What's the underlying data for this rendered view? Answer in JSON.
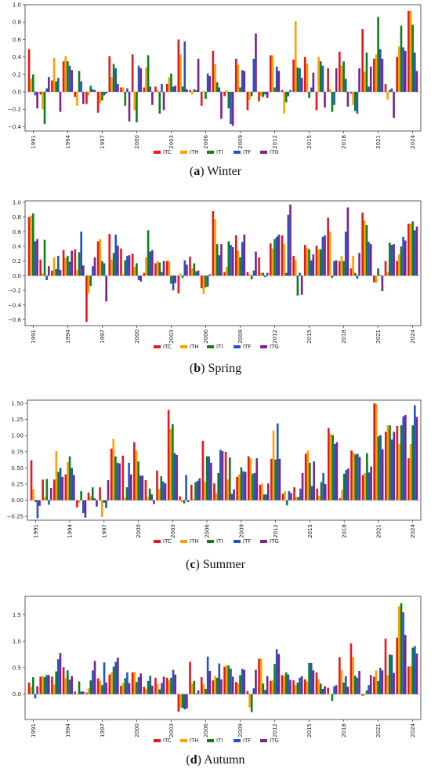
{
  "legend": [
    "ITC",
    "ITH",
    "ITI",
    "ITF",
    "ITG"
  ],
  "colors": [
    "#e41a1c",
    "#ff9f00",
    "#0e7f1e",
    "#2255c4",
    "#7b2587"
  ],
  "x_tick_labels": [
    "1991",
    "1994",
    "1997",
    "2000",
    "2003",
    "2006",
    "2009",
    "2012",
    "2015",
    "2018",
    "2021",
    "2024"
  ],
  "captions": [
    {
      "letter": "(a)",
      "bold": "a",
      "text": "Winter"
    },
    {
      "letter": "(b)",
      "bold": "b",
      "text": "Spring"
    },
    {
      "letter": "(c)",
      "bold": "c",
      "text": "Summer"
    },
    {
      "letter": "(d)",
      "bold": "d",
      "text": "Autumn"
    }
  ],
  "chart_data": [
    {
      "type": "bar",
      "title": "Winter",
      "ylim": [
        -0.45,
        1.0
      ],
      "yticks": [
        -0.4,
        -0.2,
        0.0,
        0.2,
        0.4,
        0.6,
        0.8,
        1.0
      ],
      "ytick_labels": [
        "−0.4",
        "−0.2",
        "0.0",
        "0.2",
        "0.4",
        "0.6",
        "0.8",
        "1.0"
      ],
      "categories": [
        "1991",
        "1992",
        "1993",
        "1994",
        "1995",
        "1996",
        "1997",
        "1998",
        "1999",
        "2000",
        "2001",
        "2002",
        "2003",
        "2004",
        "2005",
        "2006",
        "2007",
        "2008",
        "2009",
        "2010",
        "2011",
        "2012",
        "2013",
        "2014",
        "2015",
        "2016",
        "2017",
        "2018",
        "2019",
        "2020",
        "2021",
        "2022",
        "2023",
        "2024"
      ],
      "series": [
        {
          "name": "ITC",
          "values": [
            0.49,
            -0.03,
            0.13,
            0.35,
            -0.06,
            -0.14,
            -0.24,
            0.41,
            0.05,
            0.43,
            0.05,
            0.06,
            0.09,
            0.6,
            0.02,
            -0.16,
            0.47,
            -0.05,
            0.38,
            -0.21,
            -0.11,
            0.42,
            0.02,
            0.37,
            0.4,
            -0.21,
            0.27,
            0.46,
            -0.02,
            0.72,
            0.38,
            0.09,
            0.4,
            0.93
          ]
        },
        {
          "name": "ITH",
          "values": [
            0.15,
            -0.2,
            0.39,
            0.41,
            -0.16,
            -0.04,
            -0.13,
            0.17,
            0.05,
            -0.21,
            0.28,
            0.02,
            0.17,
            0.43,
            -0.03,
            0.01,
            0.32,
            0.02,
            0.31,
            -0.09,
            -0.05,
            0.42,
            -0.25,
            0.81,
            0.32,
            0.4,
            0.03,
            0.3,
            -0.15,
            0.23,
            0.43,
            -0.09,
            0.52,
            0.93
          ]
        },
        {
          "name": "ITI",
          "values": [
            0.2,
            -0.37,
            0.12,
            0.35,
            0.24,
            0.07,
            -0.1,
            0.32,
            -0.16,
            -0.35,
            0.42,
            -0.25,
            0.21,
            0.06,
            0.03,
            -0.08,
            0.11,
            -0.19,
            0.05,
            -0.05,
            -0.06,
            0.05,
            -0.12,
            0.28,
            -0.07,
            0.35,
            -0.23,
            0.35,
            -0.22,
            0.45,
            0.86,
            0.02,
            0.76,
            0.77
          ]
        },
        {
          "name": "ITF",
          "values": [
            -0.04,
            0.04,
            0.16,
            0.3,
            0.12,
            0.03,
            -0.04,
            0.27,
            0.04,
            0.3,
            0.06,
            0.09,
            0.06,
            0.58,
            0.02,
            0.21,
            0.05,
            -0.37,
            0.25,
            0.38,
            -0.03,
            0.29,
            -0.05,
            0.27,
            0.05,
            0.3,
            -0.15,
            0.15,
            -0.25,
            0.06,
            0.49,
            0.04,
            0.51,
            0.45
          ]
        },
        {
          "name": "ITG",
          "values": [
            -0.19,
            0.17,
            -0.23,
            0.25,
            -0.14,
            0.02,
            -0.02,
            0.09,
            -0.34,
            0.27,
            -0.15,
            -0.21,
            0.07,
            0.03,
            0.38,
            0.18,
            -0.31,
            -0.39,
            0.24,
            0.67,
            -0.07,
            0.24,
            0.02,
            0.16,
            0.22,
            -0.18,
            0.27,
            -0.17,
            0.27,
            0.29,
            0.38,
            -0.3,
            0.47,
            0.24
          ]
        }
      ]
    },
    {
      "type": "bar",
      "title": "Spring",
      "ylim": [
        -0.68,
        1.02
      ],
      "yticks": [
        -0.6,
        -0.4,
        -0.2,
        0.0,
        0.2,
        0.4,
        0.6,
        0.8,
        1.0
      ],
      "ytick_labels": [
        "−0.6",
        "−0.4",
        "−0.2",
        "0.0",
        "0.2",
        "0.4",
        "0.6",
        "0.8",
        "1.0"
      ],
      "categories": [
        "1991",
        "1992",
        "1993",
        "1994",
        "1995",
        "1996",
        "1997",
        "1998",
        "1999",
        "2000",
        "2001",
        "2002",
        "2003",
        "2004",
        "2005",
        "2006",
        "2007",
        "2008",
        "2009",
        "2010",
        "2011",
        "2012",
        "2013",
        "2014",
        "2015",
        "2016",
        "2017",
        "2018",
        "2019",
        "2020",
        "2021",
        "2022",
        "2023",
        "2024"
      ],
      "series": [
        {
          "name": "ITC",
          "values": [
            0.8,
            0.22,
            0.07,
            0.35,
            0.36,
            -0.63,
            0.47,
            0.57,
            0.37,
            0.3,
            0.04,
            0.17,
            0.2,
            -0.24,
            0.26,
            -0.17,
            0.88,
            0.05,
            0.55,
            0.05,
            0.25,
            0.44,
            0.55,
            0.27,
            0.42,
            0.41,
            0.79,
            0.2,
            0.1,
            0.86,
            -0.09,
            0.2,
            0.2,
            0.71
          ]
        },
        {
          "name": "ITH",
          "values": [
            0.82,
            0.03,
            0.25,
            0.24,
            0.08,
            -0.24,
            0.5,
            0.22,
            0.02,
            0.12,
            0.25,
            0.2,
            0.2,
            0.03,
            0.1,
            -0.25,
            0.77,
            0.12,
            0.34,
            0.02,
            0.04,
            0.37,
            0.43,
            0.21,
            0.38,
            0.36,
            0.6,
            0.27,
            0.27,
            0.75,
            -0.1,
            0.05,
            0.29,
            0.71
          ]
        },
        {
          "name": "ITI",
          "values": [
            0.85,
            0.49,
            0.09,
            0.27,
            0.32,
            -0.14,
            0.2,
            0.31,
            0.21,
            0.17,
            0.62,
            0.18,
            -0.11,
            -0.03,
            0.17,
            -0.16,
            0.43,
            0.47,
            0.25,
            -0.05,
            0.04,
            0.5,
            0.04,
            -0.27,
            0.36,
            0.36,
            -0.03,
            0.2,
            0.04,
            0.69,
            0.1,
            0.45,
            0.4,
            0.74
          ]
        },
        {
          "name": "ITF",
          "values": [
            0.47,
            -0.06,
            0.27,
            0.19,
            0.6,
            0.13,
            0.17,
            0.56,
            0.27,
            -0.06,
            0.33,
            0.05,
            -0.2,
            0.21,
            0.06,
            -0.15,
            0.28,
            0.42,
            0.46,
            0.07,
            -0.02,
            0.53,
            0.83,
            0.04,
            0.21,
            0.53,
            0.2,
            0.6,
            -0.04,
            0.46,
            0.01,
            0.42,
            0.53,
            0.62
          ]
        },
        {
          "name": "ITG",
          "values": [
            0.5,
            0.13,
            0.08,
            0.34,
            0.14,
            0.25,
            -0.35,
            0.41,
            0.28,
            -0.08,
            0.35,
            0.2,
            -0.1,
            0.15,
            0.07,
            0.02,
            0.43,
            0.39,
            0.56,
            0.33,
            0.04,
            0.56,
            0.97,
            -0.26,
            0.29,
            0.55,
            0.21,
            0.93,
            0.31,
            0.43,
            -0.21,
            0.43,
            0.48,
            0.67
          ]
        }
      ]
    },
    {
      "type": "bar",
      "title": "Summer",
      "ylim": [
        -0.31,
        1.55
      ],
      "yticks": [
        -0.25,
        0.0,
        0.25,
        0.5,
        0.75,
        1.0,
        1.25,
        1.5
      ],
      "ytick_labels": [
        "−0.25",
        "0.00",
        "0.25",
        "0.50",
        "0.75",
        "1.00",
        "1.25",
        "1.50"
      ],
      "categories": [
        "1991",
        "1992",
        "1993",
        "1994",
        "1995",
        "1996",
        "1997",
        "1998",
        "1999",
        "2000",
        "2001",
        "2002",
        "2003",
        "2004",
        "2005",
        "2006",
        "2007",
        "2008",
        "2009",
        "2010",
        "2011",
        "2012",
        "2013",
        "2014",
        "2015",
        "2016",
        "2017",
        "2018",
        "2019",
        "2020",
        "2021",
        "2022",
        "2023",
        "2024"
      ],
      "series": [
        {
          "name": "ITC",
          "values": [
            0.62,
            0.32,
            0.32,
            0.4,
            -0.11,
            0.12,
            0.2,
            0.8,
            0.69,
            0.9,
            0.31,
            0.46,
            1.4,
            0.06,
            0.24,
            0.92,
            0.26,
            0.75,
            0.36,
            0.68,
            0.24,
            0.64,
            0.1,
            0.2,
            0.72,
            0.18,
            1.12,
            0.03,
            0.77,
            0.39,
            1.5,
            1.06,
            1.15,
            0.65
          ]
        },
        {
          "name": "ITH",
          "values": [
            0.17,
            0.05,
            0.76,
            0.59,
            -0.04,
            0.06,
            -0.26,
            0.95,
            0.04,
            0.77,
            0.05,
            0.17,
            1.1,
            -0.03,
            0.02,
            0.28,
            0.11,
            0.32,
            0.4,
            0.65,
            0.26,
            1.08,
            0.14,
            0.05,
            0.77,
            0.07,
            1.02,
            0.16,
            0.74,
            0.42,
            1.49,
            1.16,
            0.87,
            0.87
          ]
        },
        {
          "name": "ITI",
          "values": [
            -0.03,
            0.33,
            0.44,
            0.68,
            0.14,
            0.2,
            -0.04,
            0.68,
            0.2,
            0.6,
            0.18,
            0.37,
            1.18,
            -0.05,
            0.28,
            0.68,
            0.42,
            0.66,
            0.51,
            0.41,
            0.09,
            0.63,
            -0.08,
            0.05,
            0.58,
            0.28,
            1.01,
            0.41,
            0.71,
            0.73,
            0.99,
            1.16,
            1.16,
            1.16
          ]
        },
        {
          "name": "ITF",
          "values": [
            -0.28,
            -0.07,
            0.5,
            0.5,
            -0.2,
            0.03,
            -0.12,
            0.58,
            0.58,
            0.38,
            0.09,
            0.29,
            0.73,
            0.39,
            0.3,
            0.68,
            0.78,
            0.1,
            0.45,
            0.42,
            0.09,
            1.19,
            0.14,
            0.18,
            0.22,
            0.42,
            0.87,
            0.47,
            0.72,
            0.43,
            1.01,
            0.94,
            1.3,
            1.47
          ]
        },
        {
          "name": "ITG",
          "values": [
            -0.09,
            0.19,
            0.36,
            0.39,
            -0.27,
            -0.1,
            0.31,
            0.57,
            0.4,
            0.38,
            -0.06,
            0.26,
            0.7,
            -0.03,
            0.34,
            0.58,
            0.76,
            0.17,
            0.44,
            0.65,
            0.26,
            0.64,
            0.11,
            0.42,
            0.6,
            0.25,
            0.9,
            0.49,
            0.67,
            0.52,
            0.79,
            1.06,
            1.32,
            1.29
          ]
        }
      ]
    },
    {
      "type": "bar",
      "title": "Autumn",
      "ylim": [
        -0.48,
        1.85
      ],
      "yticks": [
        0.0,
        0.5,
        1.0,
        1.5
      ],
      "ytick_labels": [
        "0.0",
        "0.5",
        "1.0",
        "1.5"
      ],
      "categories": [
        "1991",
        "1992",
        "1993",
        "1994",
        "1995",
        "1996",
        "1997",
        "1998",
        "1999",
        "2000",
        "2001",
        "2002",
        "2003",
        "2004",
        "2005",
        "2006",
        "2007",
        "2008",
        "2009",
        "2010",
        "2011",
        "2012",
        "2013",
        "2014",
        "2015",
        "2016",
        "2017",
        "2018",
        "2019",
        "2020",
        "2021",
        "2022",
        "2023",
        "2024"
      ],
      "series": [
        {
          "name": "ITC",
          "values": [
            0.22,
            0.33,
            0.33,
            0.51,
            0.05,
            0.03,
            0.3,
            0.37,
            0.16,
            0.41,
            0.14,
            0.31,
            0.31,
            -0.33,
            0.61,
            0.32,
            0.26,
            0.52,
            0.23,
            0.06,
            0.67,
            0.25,
            0.36,
            0.26,
            0.28,
            0.41,
            0.12,
            0.7,
            0.96,
            -0.03,
            0.33,
            1.05,
            1.07,
            0.52
          ]
        },
        {
          "name": "ITH",
          "values": [
            0.14,
            0.34,
            0.18,
            0.3,
            -0.01,
            0.11,
            0.25,
            0.41,
            0.21,
            0.42,
            0.1,
            0.19,
            0.26,
            -0.26,
            0.2,
            0.19,
            0.34,
            0.55,
            0.2,
            -0.25,
            0.67,
            0.26,
            0.35,
            0.17,
            0.24,
            0.28,
            0.0,
            0.46,
            0.7,
            -0.02,
            0.45,
            0.36,
            1.66,
            0.53
          ]
        },
        {
          "name": "ITI",
          "values": [
            0.32,
            0.32,
            0.43,
            0.45,
            0.24,
            0.26,
            0.17,
            0.52,
            0.3,
            0.23,
            0.25,
            0.09,
            0.31,
            -0.26,
            0.25,
            0.1,
            0.31,
            0.54,
            0.36,
            -0.34,
            0.2,
            0.57,
            0.41,
            0.22,
            0.59,
            0.2,
            -0.13,
            0.22,
            0.35,
            0.07,
            0.25,
            0.75,
            1.72,
            0.88
          ]
        },
        {
          "name": "ITF",
          "values": [
            -0.08,
            0.36,
            0.66,
            0.27,
            0.05,
            0.45,
            0.6,
            0.61,
            0.41,
            0.32,
            0.35,
            0.21,
            0.46,
            -0.29,
            0.01,
            0.71,
            0.58,
            0.48,
            0.48,
            0.11,
            0.08,
            0.85,
            0.37,
            0.31,
            0.59,
            0.1,
            0.15,
            0.34,
            0.31,
            0.17,
            0.5,
            0.74,
            1.55,
            0.91
          ]
        },
        {
          "name": "ITG",
          "values": [
            0.15,
            0.36,
            0.78,
            0.34,
            0.05,
            0.63,
            0.22,
            0.69,
            0.21,
            0.39,
            0.16,
            0.33,
            0.37,
            -0.27,
            0.07,
            0.44,
            0.28,
            0.33,
            0.46,
            0.46,
            0.34,
            0.76,
            0.27,
            0.34,
            0.45,
            0.15,
            0.17,
            0.14,
            0.44,
            0.36,
            0.45,
            0.4,
            1.12,
            0.77
          ]
        }
      ]
    }
  ]
}
